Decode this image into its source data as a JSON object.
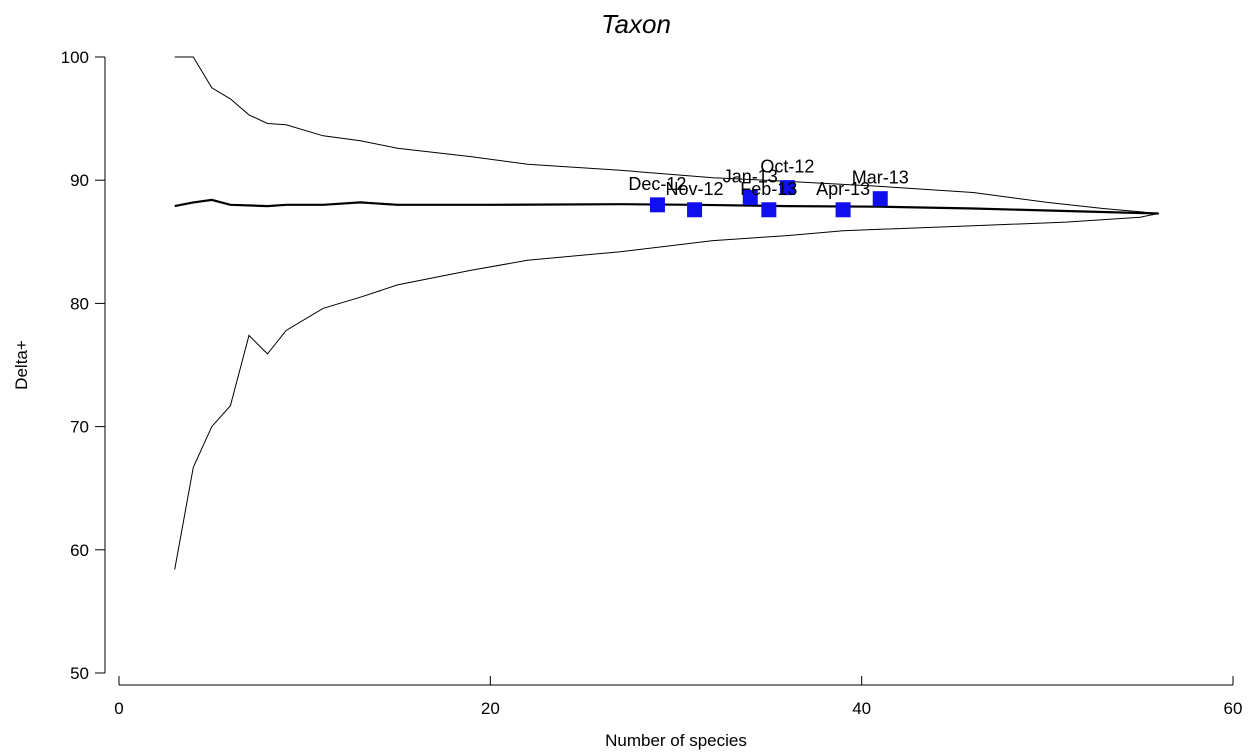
{
  "chart_data": {
    "type": "scatter",
    "title": "Taxon",
    "title_color": "#1010ee",
    "xlabel": "Number of species",
    "ylabel": "Delta+",
    "xlim": [
      0,
      60
    ],
    "ylim": [
      50,
      100
    ],
    "x_ticks": [
      0,
      20,
      40,
      60
    ],
    "y_ticks": [
      50,
      60,
      70,
      80,
      90,
      100
    ],
    "x_tick_labels": [
      "0",
      "20",
      "40",
      "60"
    ],
    "y_tick_labels": [
      "50",
      "60",
      "70",
      "80",
      "90",
      "100"
    ],
    "grid": false,
    "marker_color": "#1010ee",
    "points": [
      {
        "label": "Dec-12",
        "x": 29,
        "y": 88.0
      },
      {
        "label": "Nov-12",
        "x": 31,
        "y": 87.6
      },
      {
        "label": "Jan-13",
        "x": 34,
        "y": 88.6
      },
      {
        "label": "Feb-13",
        "x": 35,
        "y": 87.6
      },
      {
        "label": "Oct-12",
        "x": 36,
        "y": 89.4
      },
      {
        "label": "Apr-13",
        "x": 39,
        "y": 87.6
      },
      {
        "label": "Mar-13",
        "x": 41,
        "y": 88.5
      }
    ],
    "funnel": {
      "upper": [
        [
          3,
          100
        ],
        [
          4,
          100
        ],
        [
          5,
          97.5
        ],
        [
          6,
          96.6
        ],
        [
          7,
          95.3
        ],
        [
          8,
          94.6
        ],
        [
          9,
          94.5
        ],
        [
          11,
          93.6
        ],
        [
          13,
          93.2
        ],
        [
          15,
          92.6
        ],
        [
          19,
          91.9
        ],
        [
          22,
          91.3
        ],
        [
          27,
          90.8
        ],
        [
          32,
          90.2
        ],
        [
          36,
          89.9
        ],
        [
          41,
          89.5
        ],
        [
          46,
          89.0
        ],
        [
          50,
          88.2
        ],
        [
          53,
          87.7
        ],
        [
          56,
          87.3
        ]
      ],
      "mean": [
        [
          3,
          87.9
        ],
        [
          4,
          88.2
        ],
        [
          5,
          88.4
        ],
        [
          6,
          88.0
        ],
        [
          8,
          87.9
        ],
        [
          9,
          88.0
        ],
        [
          11,
          88.0
        ],
        [
          13,
          88.2
        ],
        [
          15,
          88.0
        ],
        [
          20,
          88.0
        ],
        [
          27,
          88.05
        ],
        [
          31,
          88.0
        ],
        [
          36,
          87.9
        ],
        [
          41,
          87.85
        ],
        [
          46,
          87.7
        ],
        [
          51,
          87.5
        ],
        [
          56,
          87.3
        ]
      ],
      "lower": [
        [
          3,
          58.4
        ],
        [
          4,
          66.7
        ],
        [
          5,
          70.0
        ],
        [
          6,
          71.7
        ],
        [
          7,
          77.4
        ],
        [
          8,
          75.9
        ],
        [
          9,
          77.8
        ],
        [
          11,
          79.6
        ],
        [
          13,
          80.5
        ],
        [
          15,
          81.5
        ],
        [
          19,
          82.7
        ],
        [
          22,
          83.5
        ],
        [
          27,
          84.2
        ],
        [
          32,
          85.1
        ],
        [
          36,
          85.5
        ],
        [
          39,
          85.9
        ],
        [
          46,
          86.3
        ],
        [
          51,
          86.6
        ],
        [
          55,
          87.0
        ],
        [
          56,
          87.3
        ]
      ]
    }
  }
}
